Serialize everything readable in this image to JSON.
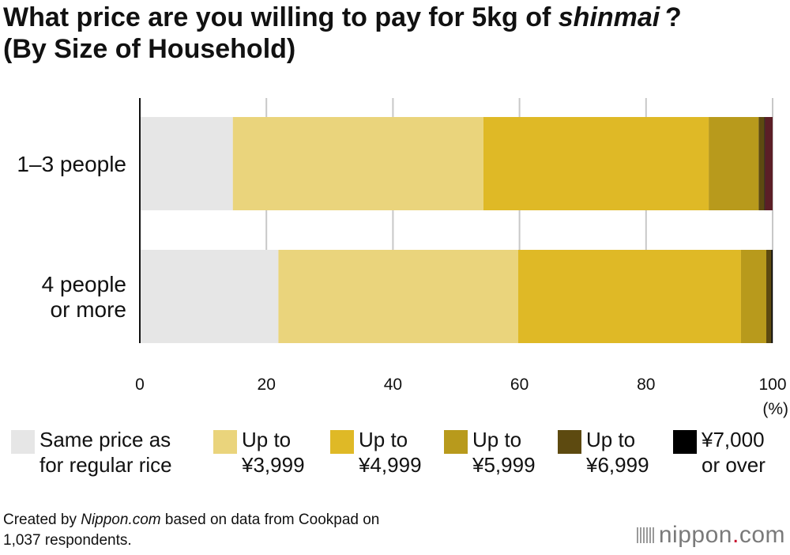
{
  "title_parts": {
    "line1_pre": "What price are you willing to pay for 5kg of ",
    "line1_italic": "shinmai",
    "line1_post": " ?",
    "line2": "(By Size of Household)"
  },
  "footer": {
    "pre": "Created by ",
    "italic": "Nippon.com",
    "post": " based on data from Cookpad on",
    "line2": "1,037 respondents."
  },
  "logo": {
    "name": "nippon",
    "dot": ".",
    "tld": "com"
  },
  "chart_data": {
    "type": "bar",
    "orientation": "horizontal",
    "stacked": true,
    "categories": [
      "1–3 people",
      "4 people or more"
    ],
    "category_lines": [
      [
        "1–3 people"
      ],
      [
        "4 people",
        "or more"
      ]
    ],
    "series": [
      {
        "name": "Same price as for regular rice",
        "legend_lines": [
          "Same price as",
          "for regular rice"
        ],
        "color": "#e6e6e6",
        "values": [
          14.7,
          21.9
        ]
      },
      {
        "name": "Up to ¥3,999",
        "legend_lines": [
          "Up to",
          "¥3,999"
        ],
        "color": "#ead47c",
        "values": [
          39.6,
          37.9
        ]
      },
      {
        "name": "Up to ¥4,999",
        "legend_lines": [
          "Up to",
          "¥4,999"
        ],
        "color": "#dfb926",
        "values": [
          35.6,
          35.2
        ]
      },
      {
        "name": "Up to ¥5,999",
        "legend_lines": [
          "Up to",
          "¥5,999"
        ],
        "color": "#b89a1c",
        "values": [
          7.9,
          4.0
        ]
      },
      {
        "name": "Up to ¥6,999",
        "legend_lines": [
          "Up to",
          "¥6,999"
        ],
        "color": "#5d4a10",
        "values": [
          0.9,
          0.8
        ]
      },
      {
        "name": "¥7,000 or over",
        "legend_lines": [
          "¥7,000",
          "or over"
        ],
        "color": "#000000",
        "values": [
          0.1,
          0.2
        ]
      },
      {
        "name": "",
        "color": "#5b1e26",
        "values": [
          1.2,
          0.0
        ]
      }
    ],
    "xlim": [
      0,
      100
    ],
    "xticks": [
      0,
      20,
      40,
      60,
      80,
      100
    ],
    "x_unit": "(%)",
    "grid": true,
    "legend_position": "bottom"
  }
}
